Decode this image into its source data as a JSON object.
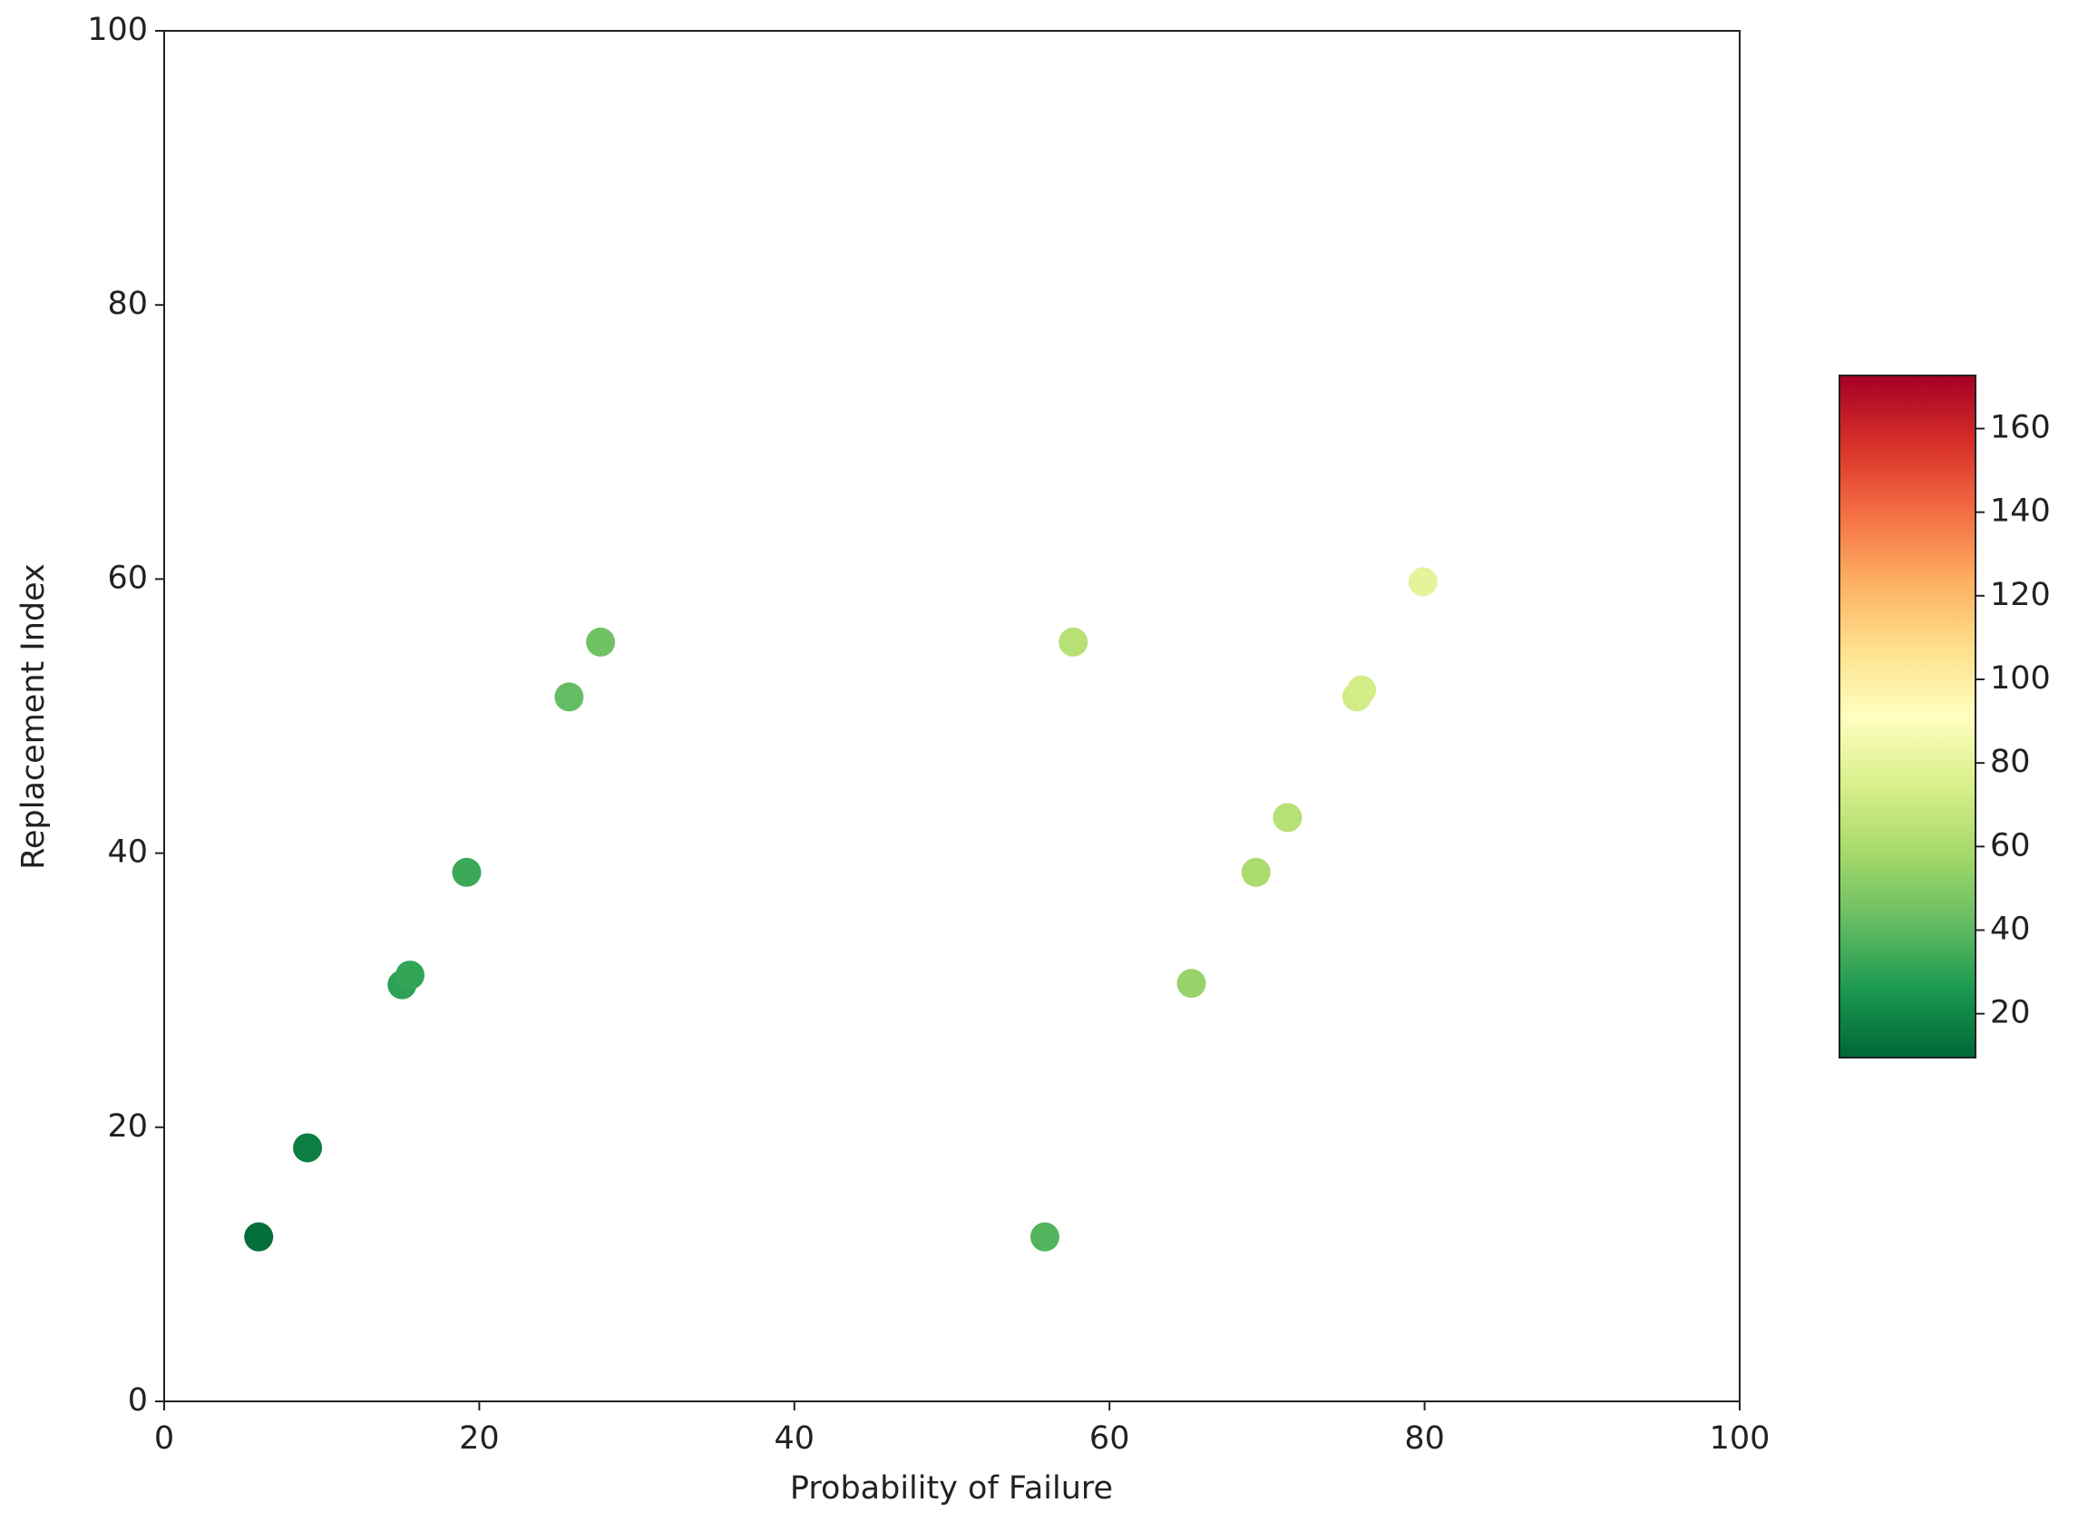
{
  "chart_data": {
    "type": "scatter",
    "x_label": "Probability of Failure",
    "y_label": "Replacement Index",
    "xlim": [
      0,
      100
    ],
    "xticks": [
      0,
      20,
      40,
      60,
      80,
      100
    ],
    "ylim": [
      0,
      100
    ],
    "yticks": [
      0,
      20,
      40,
      60,
      80,
      100
    ],
    "colormap": [
      "#006837",
      "#1a9850",
      "#66bd63",
      "#a6d96a",
      "#d9ef8b",
      "#ffffbf",
      "#fee08b",
      "#fdae61",
      "#f46d43",
      "#d73027",
      "#a50026"
    ],
    "clim": [
      9.5,
      172.7
    ],
    "cticks": [
      20,
      40,
      60,
      80,
      100,
      120,
      140,
      160
    ],
    "x": [
      6,
      9.1,
      15.1,
      15.6,
      19.2,
      25.7,
      27.7,
      55.9,
      57.7,
      65.2,
      69.3,
      71.3,
      75.7,
      76.0,
      79.9
    ],
    "values": [
      12,
      18.5,
      30.4,
      31.1,
      38.6,
      51.4,
      55.4,
      12,
      55.4,
      30.5,
      38.6,
      42.6,
      51.4,
      51.9,
      59.8
    ],
    "c": [
      12,
      17,
      30,
      31,
      33,
      42,
      45,
      38,
      64,
      55,
      60,
      64,
      72,
      73,
      80
    ]
  }
}
